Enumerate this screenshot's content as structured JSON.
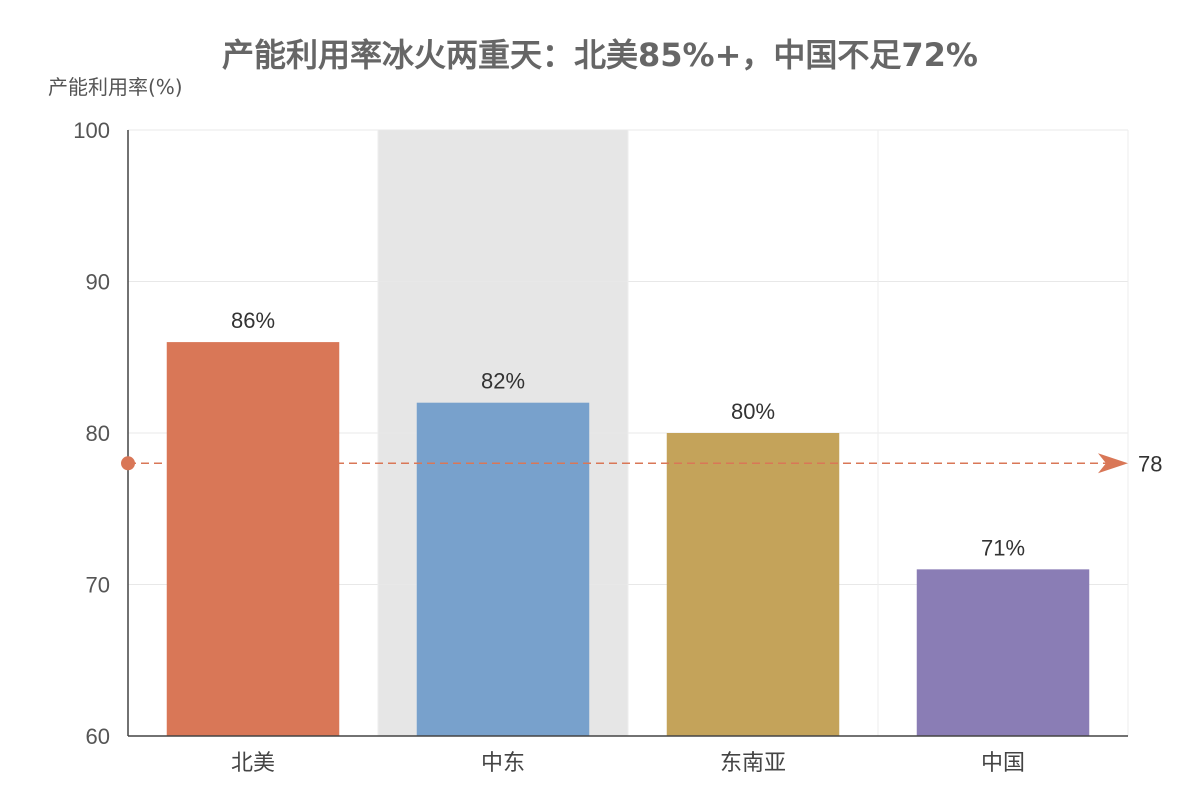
{
  "chart_data": {
    "type": "bar",
    "title": "产能利用率冰火两重天：北美85%+，中国不足72%",
    "ylabel": "产能利用率(%)",
    "xlabel": "",
    "ylim": [
      60,
      100
    ],
    "yticks": [
      60,
      70,
      80,
      90,
      100
    ],
    "categories": [
      "北美",
      "中东",
      "东南亚",
      "中国"
    ],
    "values": [
      86,
      82,
      80,
      71
    ],
    "value_labels": [
      "86%",
      "82%",
      "80%",
      "71%"
    ],
    "bar_colors": [
      "#d97757",
      "#78a1cc",
      "#c4a35a",
      "#8a7db5"
    ],
    "highlight_category": "中东",
    "reference_line": {
      "value": 78,
      "label": "78",
      "color": "#d97757"
    },
    "grid": true
  }
}
